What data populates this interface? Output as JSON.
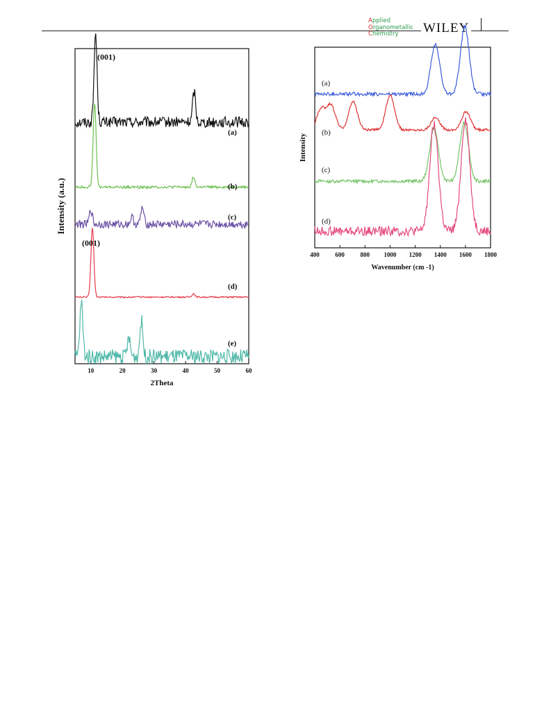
{
  "header": {
    "journal_line1": "Applied",
    "journal_line2": "Organometallic",
    "journal_line3": "Chemistry",
    "publisher": "WILEY"
  },
  "chart_data": [
    {
      "type": "line",
      "title": "",
      "xlabel": "2Theta",
      "ylabel": "Intensity (a.u.)",
      "xlim": [
        5,
        60
      ],
      "xticks": [
        10,
        20,
        30,
        40,
        50,
        60
      ],
      "yticks": false,
      "annotations": [
        "(001)",
        "(001)"
      ],
      "series": [
        {
          "name": "(a)",
          "color": "#111111",
          "peaks": [
            [
              11.5,
              1.0
            ],
            [
              42.7,
              0.35
            ]
          ],
          "baseline": 0.25,
          "noise": 0.06
        },
        {
          "name": "(b)",
          "color": "#6bbf4e",
          "peaks": [
            [
              11.2,
              1.0
            ],
            [
              42.5,
              0.12
            ]
          ],
          "baseline": 0.02,
          "noise": 0.015
        },
        {
          "name": "(c)",
          "color": "#6a4fa3",
          "peaks": [
            [
              10.0,
              0.3
            ],
            [
              26.3,
              0.35
            ],
            [
              23.0,
              0.15
            ]
          ],
          "baseline": 0.1,
          "noise": 0.08
        },
        {
          "name": "(d)",
          "color": "#e63946",
          "peaks": [
            [
              10.5,
              1.0
            ],
            [
              42.5,
              0.05
            ]
          ],
          "baseline": 0.02,
          "noise": 0.01
        },
        {
          "name": "(e)",
          "color": "#4fb8a8",
          "peaks": [
            [
              7.0,
              0.6
            ],
            [
              26.0,
              0.4
            ],
            [
              22.0,
              0.2
            ]
          ],
          "baseline": 0.05,
          "noise": 0.08
        }
      ]
    },
    {
      "type": "line",
      "title": "",
      "xlabel": "Wavenumber (cm -1)",
      "ylabel": "Intensity",
      "xlim": [
        400,
        1800
      ],
      "xticks": [
        400,
        600,
        800,
        1000,
        1200,
        1400,
        1600,
        1800
      ],
      "yticks": false,
      "series": [
        {
          "name": "(a)",
          "color": "#3b5bdb",
          "peaks": [
            [
              1360,
              0.55
            ],
            [
              1595,
              0.75
            ]
          ],
          "baseline": 0.05,
          "noise": 0.02
        },
        {
          "name": "(b)",
          "color": "#e03131",
          "peaks": [
            [
              450,
              0.5
            ],
            [
              530,
              0.6
            ],
            [
              705,
              0.7
            ],
            [
              1000,
              0.85
            ],
            [
              1360,
              0.3
            ],
            [
              1605,
              0.45
            ]
          ],
          "baseline": 0.05,
          "noise": 0.03
        },
        {
          "name": "(c)",
          "color": "#74c365",
          "peaks": [
            [
              1350,
              0.65
            ],
            [
              1590,
              0.72
            ]
          ],
          "baseline": 0.05,
          "noise": 0.02
        },
        {
          "name": "(d)",
          "color": "#e64980",
          "peaks": [
            [
              1350,
              0.9
            ],
            [
              1600,
              0.95
            ]
          ],
          "baseline": 0.1,
          "noise": 0.04
        }
      ]
    }
  ]
}
